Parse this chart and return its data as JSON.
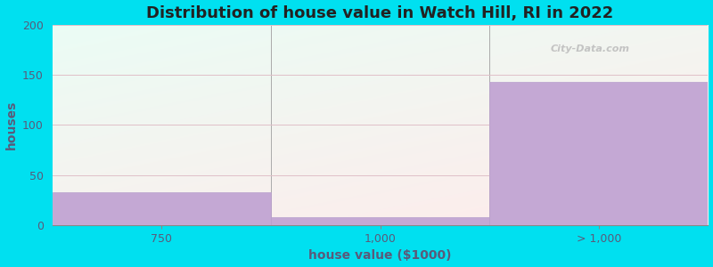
{
  "categories": [
    "750",
    "1,000",
    "> 1,000"
  ],
  "values": [
    33,
    8,
    143
  ],
  "bar_color": "#c4a8d4",
  "bar_edge_color": "#b8a0cc",
  "title": "Distribution of house value in Watch Hill, RI in 2022",
  "xlabel": "house value ($1000)",
  "ylabel": "houses",
  "ylim": [
    0,
    200
  ],
  "yticks": [
    0,
    50,
    100,
    150,
    200
  ],
  "background_outer": "#00e0f0",
  "grid_color": "#e0c0c8",
  "title_fontsize": 13,
  "label_fontsize": 10,
  "tick_fontsize": 9,
  "watermark_text": "City-Data.com",
  "tick_color": "#5a5a7a",
  "label_color": "#5a5a7a",
  "bg_gradient_left": "#d0f0d0",
  "bg_gradient_right": "#f8ffff",
  "bg_gradient_top": "#f8ffff",
  "bg_gradient_bottom": "#c8ecc8"
}
